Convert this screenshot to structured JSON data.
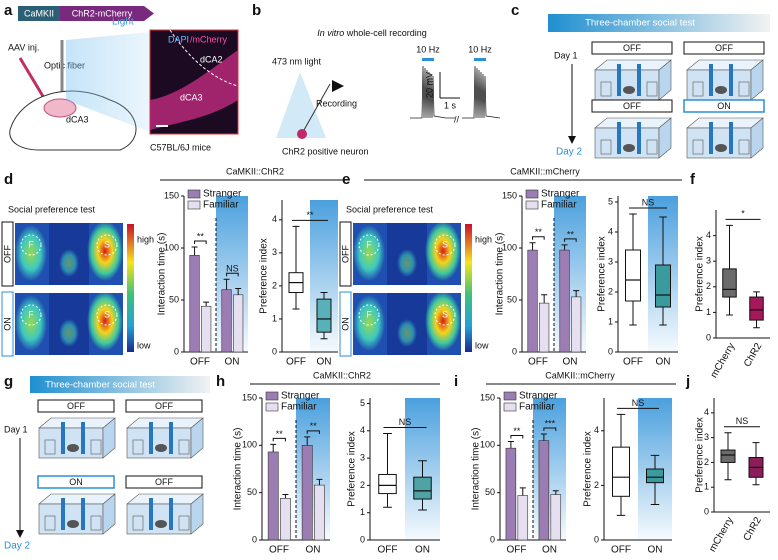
{
  "panel_labels": [
    "a",
    "b",
    "c",
    "d",
    "e",
    "f",
    "g",
    "h",
    "i",
    "j"
  ],
  "a": {
    "promoter": "CaMKII",
    "construct": "ChR2-mCherry",
    "injection": "AAV inj.",
    "fiber": "Optic fiber",
    "light": "Light",
    "stain_1": "DAPI",
    "stain_2": "/mCherry",
    "region_1": "dCA2",
    "region_2": "dCA3",
    "region_3": "dCA3",
    "strain": "C57BL/6J mice"
  },
  "b": {
    "title_italic": "In vitro",
    "title_rest": "whole-cell recording",
    "light": "473 nm light",
    "recording": "Recording",
    "neuron": "ChR2 positive neuron",
    "stim_1": "10 Hz",
    "stim_2": "10 Hz",
    "scale_v": "20 mV",
    "scale_t": "1 s"
  },
  "c": {
    "title": "Three-chamber social test",
    "day_1": "Day 1",
    "day_2": "Day 2",
    "conditions": [
      "OFF",
      "OFF",
      "OFF",
      "ON"
    ]
  },
  "d": {
    "title": "CaMKII::ChR2",
    "test": "Social preference test",
    "rows": [
      "OFF",
      "ON"
    ],
    "marks": [
      "F",
      "S",
      "F",
      "S"
    ],
    "scale_high": "high",
    "scale_low": "low"
  },
  "e": {
    "title": "CaMKII::mCherry",
    "test": "Social preference test",
    "rows": [
      "OFF",
      "ON"
    ],
    "marks": [
      "F",
      "S",
      "F",
      "S"
    ],
    "scale_high": "high",
    "scale_low": "low"
  },
  "g": {
    "title": "Three-chamber social test",
    "day_1": "Day 1",
    "day_2": "Day 2",
    "conditions": [
      "OFF",
      "OFF",
      "ON",
      "OFF"
    ]
  },
  "h": {
    "title": "CaMKII::ChR2"
  },
  "i": {
    "title": "CaMKII::mCherry"
  },
  "chart_data": [
    {
      "type": "bar",
      "y_label": "Interaction time (s)",
      "categories": [
        "OFF",
        "ON"
      ],
      "series": [
        {
          "name": "Stranger",
          "color": "#9b7db3",
          "values": [
            93,
            60
          ],
          "errors": [
            8,
            10
          ]
        },
        {
          "name": "Familiar",
          "color": "#e6dff0",
          "values": [
            44,
            55
          ],
          "errors": [
            4,
            6
          ]
        }
      ],
      "ylim": [
        0,
        150
      ],
      "yticks": [
        0,
        50,
        100,
        150
      ],
      "annotations": [
        "**",
        "NS"
      ]
    },
    {
      "type": "box",
      "y_label": "Preference index",
      "categories": [
        "OFF",
        "ON"
      ],
      "colors": [
        "#ffffff",
        "#5ab0b8"
      ],
      "boxes": [
        {
          "min": 1.3,
          "q1": 1.8,
          "median": 2.1,
          "q3": 2.4,
          "max": 3.8
        },
        {
          "min": 0.4,
          "q1": 0.6,
          "median": 1.0,
          "q3": 1.6,
          "max": 1.8
        }
      ],
      "ylim": [
        0,
        4.6
      ],
      "yticks": [
        0,
        1,
        2,
        3,
        4
      ],
      "annotation": "**"
    },
    {
      "type": "bar",
      "y_label": "Interaction time (s)",
      "categories": [
        "OFF",
        "ON"
      ],
      "series": [
        {
          "name": "Stranger",
          "color": "#9b7db3",
          "values": [
            98,
            98
          ],
          "errors": [
            7,
            5
          ]
        },
        {
          "name": "Familiar",
          "color": "#e6dff0",
          "values": [
            47,
            53
          ],
          "errors": [
            8,
            6
          ]
        }
      ],
      "ylim": [
        0,
        150
      ],
      "yticks": [
        0,
        50,
        100,
        150
      ],
      "annotations": [
        "**",
        "**"
      ]
    },
    {
      "type": "box",
      "y_label": "Preference index",
      "categories": [
        "OFF",
        "ON"
      ],
      "colors": [
        "#ffffff",
        "#3a9a9e"
      ],
      "boxes": [
        {
          "min": 0.9,
          "q1": 1.7,
          "median": 2.4,
          "q3": 3.4,
          "max": 4.6
        },
        {
          "min": 0.9,
          "q1": 1.5,
          "median": 1.9,
          "q3": 2.9,
          "max": 4.5
        }
      ],
      "ylim": [
        0,
        5.2
      ],
      "yticks": [
        0,
        1,
        2,
        3,
        4,
        5
      ],
      "annotation": "NS"
    },
    {
      "type": "box",
      "y_label": "Preference index",
      "categories": [
        "mCherry",
        "ChR2"
      ],
      "colors": [
        "#6b6b6b",
        "#a3195b"
      ],
      "boxes": [
        {
          "min": 0.9,
          "q1": 1.6,
          "median": 1.9,
          "q3": 2.7,
          "max": 4.4
        },
        {
          "min": 0.4,
          "q1": 0.7,
          "median": 1.1,
          "q3": 1.6,
          "max": 1.8
        }
      ],
      "ylim": [
        0,
        5
      ],
      "yticks": [
        0,
        1,
        2,
        3,
        4
      ],
      "annotation": "*"
    },
    {
      "type": "bar",
      "y_label": "Interaction time (s)",
      "categories": [
        "OFF",
        "ON"
      ],
      "series": [
        {
          "name": "Stranger",
          "color": "#9b7db3",
          "values": [
            93,
            100
          ],
          "errors": [
            8,
            9
          ]
        },
        {
          "name": "Familiar",
          "color": "#e6dff0",
          "values": [
            44,
            58
          ],
          "errors": [
            4,
            6
          ]
        }
      ],
      "ylim": [
        0,
        150
      ],
      "yticks": [
        0,
        50,
        100,
        150
      ],
      "annotations": [
        "**",
        "**"
      ]
    },
    {
      "type": "box",
      "y_label": "Preference index",
      "categories": [
        "OFF",
        "ON"
      ],
      "colors": [
        "#ffffff",
        "#4fa3a5"
      ],
      "boxes": [
        {
          "min": 1.2,
          "q1": 1.7,
          "median": 2.0,
          "q3": 2.4,
          "max": 3.9
        },
        {
          "min": 1.1,
          "q1": 1.5,
          "median": 1.8,
          "q3": 2.3,
          "max": 2.9
        }
      ],
      "ylim": [
        0,
        5.2
      ],
      "yticks": [
        0,
        1,
        2,
        3,
        4,
        5
      ],
      "annotation": "NS"
    },
    {
      "type": "bar",
      "y_label": "Interaction time (s)",
      "categories": [
        "OFF",
        "ON"
      ],
      "series": [
        {
          "name": "Stranger",
          "color": "#9b7db3",
          "values": [
            97,
            105
          ],
          "errors": [
            7,
            7
          ]
        },
        {
          "name": "Familiar",
          "color": "#e6dff0",
          "values": [
            47,
            48
          ],
          "errors": [
            8,
            4
          ]
        }
      ],
      "ylim": [
        0,
        150
      ],
      "yticks": [
        0,
        50,
        100,
        150
      ],
      "annotations": [
        "**",
        "***"
      ]
    },
    {
      "type": "box",
      "y_label": "Preference index",
      "categories": [
        "OFF",
        "ON"
      ],
      "colors": [
        "#ffffff",
        "#3a9a9e"
      ],
      "boxes": [
        {
          "min": 0.9,
          "q1": 1.6,
          "median": 2.3,
          "q3": 3.4,
          "max": 4.6
        },
        {
          "min": 1.3,
          "q1": 2.1,
          "median": 2.3,
          "q3": 2.6,
          "max": 3.1
        }
      ],
      "ylim": [
        0,
        5.2
      ],
      "yticks": [
        0,
        2,
        4
      ],
      "annotation": "NS"
    },
    {
      "type": "box",
      "y_label": "Preference index",
      "categories": [
        "mCherry",
        "ChR2"
      ],
      "colors": [
        "#6b6b6b",
        "#8b1d5a"
      ],
      "boxes": [
        {
          "min": 1.3,
          "q1": 2.0,
          "median": 2.3,
          "q3": 2.5,
          "max": 3.2
        },
        {
          "min": 1.1,
          "q1": 1.4,
          "median": 1.8,
          "q3": 2.2,
          "max": 2.8
        }
      ],
      "ylim": [
        0,
        4.6
      ],
      "yticks": [
        0,
        1,
        2,
        3,
        4
      ],
      "annotation": "NS"
    }
  ]
}
